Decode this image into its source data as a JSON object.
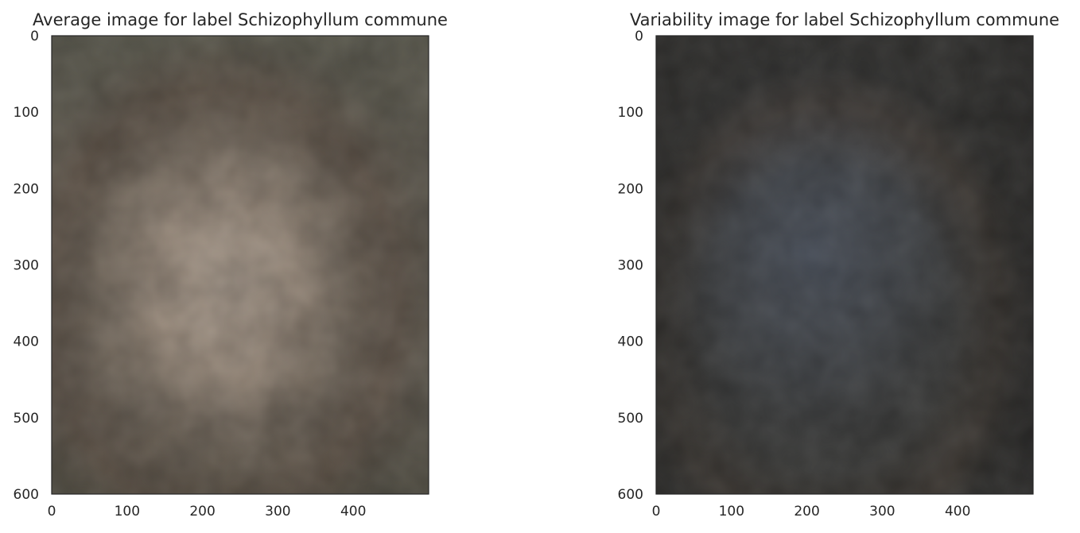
{
  "chart_data": [
    {
      "type": "image",
      "title": "Average image for label Schizophyllum commune",
      "xlabel": "",
      "ylabel": "",
      "xlim": [
        0,
        500
      ],
      "ylim": [
        600,
        0
      ],
      "y_inverted": true,
      "xticks": [
        0,
        100,
        200,
        300,
        400
      ],
      "yticks": [
        0,
        100,
        200,
        300,
        400,
        500,
        600
      ],
      "grid": false,
      "colors": {
        "base": "#6b6459",
        "center": "#a8998a",
        "ring": "#5b4e43",
        "edge": "#595a4e"
      }
    },
    {
      "type": "image",
      "title": "Variability image for label Schizophyllum commune",
      "xlabel": "",
      "ylabel": "",
      "xlim": [
        0,
        500
      ],
      "ylim": [
        600,
        0
      ],
      "y_inverted": true,
      "xticks": [
        0,
        100,
        200,
        300,
        400
      ],
      "yticks": [
        0,
        100,
        200,
        300,
        400,
        500,
        600
      ],
      "grid": false,
      "colors": {
        "base": "#3b3b39",
        "center": "#4a505a",
        "ring": "#413834",
        "edge": "#2f2e2c"
      }
    }
  ]
}
